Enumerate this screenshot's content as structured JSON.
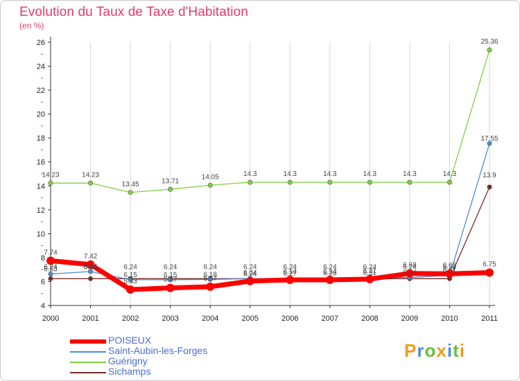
{
  "chart_data": {
    "type": "line",
    "title": "Evolution du Taux de Taxe d'Habitation",
    "ylabel": "(en %)",
    "x": [
      "2000",
      "2001",
      "2002",
      "2003",
      "2004",
      "2005",
      "2006",
      "2007",
      "2008",
      "2009",
      "2010",
      "2011"
    ],
    "ylim": [
      4,
      26
    ],
    "yticks": [
      "4",
      "6",
      "8",
      "10",
      "12",
      "14",
      "16",
      "18",
      "20",
      "22",
      "24",
      "26"
    ],
    "series": [
      {
        "name": "POISEUX",
        "color": "#ff0000",
        "values": [
          7.74,
          7.42,
          5.33,
          5.47,
          5.57,
          6.04,
          6.14,
          6.14,
          6.21,
          6.68,
          6.65,
          6.75
        ],
        "labels": [
          "7.74",
          "7.42",
          "5.33",
          "5.47",
          "5.57",
          "6.04",
          "6.14",
          "6.14",
          "6.21",
          "6.68",
          "6.65",
          "6.75"
        ]
      },
      {
        "name": "Saint-Aubin-les-Forges",
        "color": "#4a8fd4",
        "values": [
          6.63,
          6.84,
          6.15,
          6.15,
          6.18,
          6.24,
          6.27,
          6.28,
          6.31,
          6.34,
          6.51,
          17.55
        ],
        "labels": [
          "6.63",
          "6.84",
          "6.15",
          "6.15",
          "6.18",
          "6.24",
          "6.27",
          "6.28",
          "6.31",
          "6.34",
          "6.51",
          "17.55"
        ]
      },
      {
        "name": "Guérigny",
        "color": "#7ed040",
        "values": [
          14.23,
          14.23,
          13.45,
          13.71,
          14.05,
          14.3,
          14.3,
          14.3,
          14.3,
          14.3,
          14.3,
          25.36
        ],
        "labels": [
          "14.23",
          "14.23",
          "13.45",
          "13.71",
          "14.05",
          "14.3",
          "14.3",
          "14.3",
          "14.3",
          "14.3",
          "14.3",
          "25.36"
        ]
      },
      {
        "name": "Sichamps",
        "color": "#7a2a2a",
        "values": [
          6.24,
          6.24,
          6.24,
          6.24,
          6.24,
          6.24,
          6.24,
          6.24,
          6.24,
          6.24,
          6.24,
          13.9
        ],
        "labels": [
          "6.24",
          "6.24",
          "6.24",
          "6.24",
          "6.24",
          "6.24",
          "6.24",
          "6.24",
          "6.24",
          "6.24",
          "6.24",
          "13.9"
        ]
      }
    ]
  },
  "brand": {
    "letters": [
      "P",
      "r",
      "o",
      "x",
      "i",
      "t",
      "i"
    ],
    "colors": [
      "#f29a1e",
      "#4a90d9",
      "#6bbf3a",
      "#f29a1e",
      "#4a90d9",
      "#6bbf3a",
      "#f29a1e"
    ]
  }
}
